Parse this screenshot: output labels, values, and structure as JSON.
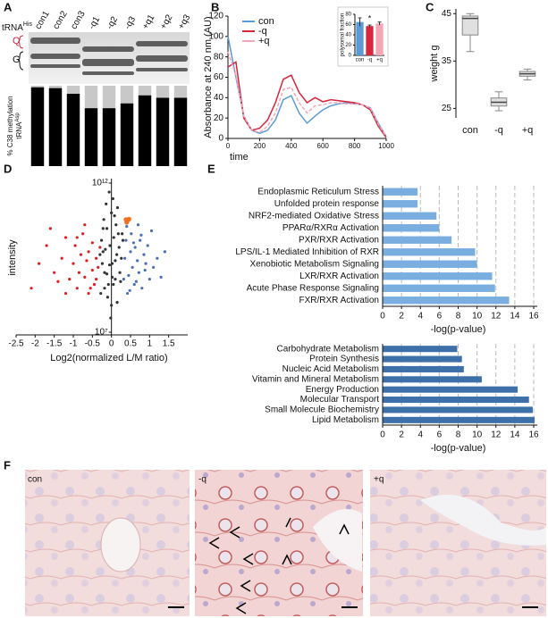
{
  "panel_labels": [
    "A",
    "B",
    "C",
    "D",
    "E",
    "F"
  ],
  "gel": {
    "title": "tRNA",
    "title_sup": "His",
    "bands": [
      "Q",
      "G"
    ]
  },
  "micrographs": {
    "labels": [
      "con",
      "-q",
      "+q"
    ]
  },
  "chart_data": [
    {
      "type": "bar",
      "categories": [
        "con1",
        "con2",
        "con3",
        "-q1",
        "-q2",
        "-q3",
        "+q1",
        "+q2",
        "+q3"
      ],
      "values": [
        98,
        97,
        90,
        72,
        72,
        78,
        88,
        85,
        85
      ],
      "ylim": [
        0,
        100
      ],
      "y_label": "% C38 methylation",
      "y_label_2": "tRNA",
      "y_label_2_sup": "Asp",
      "color": "#000000",
      "background_color": "#c8c8c8"
    },
    {
      "type": "line",
      "x_label": "time",
      "y_label": "Absorbance at 240 nm (AU)",
      "x": [
        0,
        50,
        100,
        150,
        200,
        250,
        300,
        350,
        400,
        450,
        500,
        550,
        600,
        650,
        700,
        750,
        800,
        850,
        900,
        950,
        1000
      ],
      "xlim": [
        0,
        1000
      ],
      "xticks": [
        0,
        200,
        400,
        600,
        800,
        1000
      ],
      "ylim": [
        0,
        120
      ],
      "yticks": [
        0,
        20,
        40,
        60,
        80,
        100,
        120
      ],
      "series": [
        {
          "name": "con",
          "color": "#5b9bd5",
          "values": [
            100,
            60,
            22,
            8,
            5,
            8,
            18,
            38,
            42,
            25,
            15,
            22,
            28,
            32,
            34,
            35,
            34,
            33,
            30,
            15,
            2
          ]
        },
        {
          "name": "-q",
          "color": "#d7263d",
          "values": [
            70,
            75,
            20,
            8,
            10,
            18,
            35,
            58,
            62,
            45,
            35,
            40,
            36,
            38,
            37,
            36,
            35,
            33,
            28,
            12,
            1
          ]
        },
        {
          "name": "+q",
          "color": "#f4a6b4",
          "values": [
            85,
            62,
            22,
            8,
            6,
            12,
            25,
            48,
            50,
            35,
            25,
            32,
            33,
            35,
            35,
            34,
            34,
            33,
            30,
            14,
            2
          ]
        }
      ]
    },
    {
      "type": "bar",
      "y_label": "polysomal fraction",
      "categories": [
        "con",
        "-q",
        "+q"
      ],
      "values": [
        65,
        57,
        62
      ],
      "errors": [
        8,
        2,
        3
      ],
      "colors": [
        "#5b9bd5",
        "#d7263d",
        "#f4a6b4"
      ],
      "ylim": [
        0,
        80
      ],
      "yticks": [
        0,
        20,
        40,
        60,
        80
      ],
      "annotations": [
        {
          "text": "*",
          "index": 1
        }
      ]
    },
    {
      "type": "box",
      "y_label": "weight g",
      "categories": [
        "con",
        "-q",
        "+q"
      ],
      "boxes": [
        {
          "whislo": 37,
          "q1": 40.5,
          "med": 44,
          "q3": 44.5,
          "whishi": 45
        },
        {
          "whislo": 24.5,
          "q1": 25.5,
          "med": 26.3,
          "q3": 27.2,
          "whishi": 28.5
        },
        {
          "whislo": 31,
          "q1": 31.8,
          "med": 32.3,
          "q3": 32.8,
          "whishi": 33.3
        }
      ],
      "ylim": [
        23,
        46
      ],
      "yticks": [
        25,
        35,
        45
      ],
      "color": "#e0e0e0"
    },
    {
      "type": "scatter",
      "x_label": "Log2(normalized L/M ratio)",
      "y_label": "intensity",
      "xlim": [
        -2.5,
        2.0
      ],
      "xticks": [
        -2.5,
        -2,
        -1.5,
        -1,
        -0.5,
        0,
        0.5,
        1,
        1.5
      ],
      "ylim": [
        10000000,
        1000000000000
      ],
      "log_scale_y": true,
      "yticks": [
        {
          "value": 1000000000000,
          "label": "10¹²"
        },
        {
          "value": 10000000,
          "label": "10⁷"
        }
      ],
      "series": [
        {
          "color": "#e02020",
          "x": [
            -2.1,
            -1.9,
            -1.7,
            -1.5,
            -1.4,
            -1.3,
            -1.2,
            -1.1,
            -1.0,
            -0.95,
            -0.9,
            -0.85,
            -0.8,
            -0.75,
            -0.7,
            -0.65,
            -0.6,
            -0.55,
            -0.5,
            -0.5,
            -0.45,
            -0.4,
            -0.4,
            -0.35,
            -0.3,
            -0.6,
            -1.6,
            -0.7,
            -1.2,
            -0.9
          ],
          "values": [
            300000000.0,
            2000000000.0,
            8000000000.0,
            1000000000.0,
            500000000.0,
            3000000000.0,
            15000000000.0,
            600000000.0,
            2000000000.0,
            8000000000.0,
            300000000.0,
            1000000000.0,
            4000000000.0,
            20000000000.0,
            700000000.0,
            2500000000.0,
            5000000000.0,
            300000000.0,
            1200000000.0,
            10000000000.0,
            400000000.0,
            3000000000.0,
            600000000.0,
            1500000000.0,
            7000000000.0,
            200000000.0,
            30000000000.0,
            40000000000.0,
            200000000.0,
            15000000000.0
          ]
        },
        {
          "color": "#333333",
          "x": [
            -0.28,
            -0.22,
            -0.18,
            -0.12,
            -0.08,
            -0.04,
            0.02,
            0.06,
            0.1,
            0.14,
            0.18,
            0.22,
            0.26,
            -0.26,
            -0.2,
            -0.14,
            -0.06,
            0.0,
            0.04,
            0.08,
            0.12,
            0.16,
            -0.1,
            0.0,
            -0.02,
            0.05,
            -0.16,
            0.2,
            -0.24,
            0.24,
            -0.3,
            0.3,
            -0.18,
            0.1,
            -0.05,
            0.02,
            0.15,
            -0.12,
            0.28,
            -0.22
          ],
          "values": [
            200000000.0,
            5000000000.0,
            1000000000.0,
            30000000000.0,
            400000000.0,
            8000000000.0,
            2000000000.0,
            15000000000.0,
            600000000.0,
            4000000000.0,
            20000000000.0,
            1000000000.0,
            3000000000.0,
            12000000000.0,
            60000000000.0,
            200000000000.0,
            500000000000.0,
            100000000000.0,
            300000000000.0,
            80000000000.0,
            40000000000.0,
            150000000000.0,
            150000000.0,
            80000000.0,
            30000000.0,
            400000000.0,
            6000000000.0,
            7000000000.0,
            2000000000.0,
            500000000.0,
            4000000000.0,
            12000000000.0,
            300000000.0,
            2500000000.0,
            1800000000.0,
            700000000.0,
            100000000.0,
            900000000.0,
            20000000000.0,
            30000000000.0
          ]
        },
        {
          "color": "#4a6fb5",
          "x": [
            0.32,
            0.35,
            0.38,
            0.42,
            0.45,
            0.5,
            0.52,
            0.55,
            0.6,
            0.62,
            0.68,
            0.72,
            0.75,
            0.8,
            0.85,
            0.9,
            0.95,
            1.0,
            1.05,
            1.1,
            1.2,
            1.3,
            0.4,
            0.48,
            0.58,
            0.65,
            0.78,
            0.88,
            1.4,
            0.7
          ],
          "values": [
            600000000.0,
            3000000000.0,
            12000000000.0,
            200000000.0,
            800000000.0,
            5000000000.0,
            20000000000.0,
            1500000000.0,
            400000000.0,
            7000000000.0,
            2500000000.0,
            1000000000.0,
            12000000000.0,
            300000000.0,
            4000000000.0,
            2000000000.0,
            8000000000.0,
            600000000.0,
            25000000000.0,
            1500000000.0,
            3000000000.0,
            700000000.0,
            35000000000.0,
            250000000.0,
            10000000000.0,
            500000000.0,
            18000000000.0,
            1200000000.0,
            5000000000.0,
            40000000000.0
          ]
        },
        {
          "color": "#f07020",
          "x": [
            0.38,
            0.42,
            0.46,
            0.4
          ],
          "values": [
            60000000000.0,
            55000000000.0,
            62000000000.0,
            48000000000.0
          ]
        }
      ]
    },
    {
      "type": "hbar",
      "x_label": "-log(p-value)",
      "categories": [
        "Endoplasmic Reticulum Stress",
        "Unfolded protein response",
        "NRF2-mediated Oxidative Stress",
        "PPARα/RXRα Activation",
        "PXR/RXR Activation",
        "LPS/IL-1 Mediated Inhibition of RXR",
        "Xenobiotic Metabolism Signaling",
        "LXR/RXR Activation",
        "Acute Phase Response Signaling",
        "FXR/RXR Activation"
      ],
      "values": [
        3.7,
        3.7,
        5.7,
        6.0,
        7.3,
        9.8,
        10.0,
        11.6,
        11.9,
        13.4
      ],
      "xlim": [
        0,
        16
      ],
      "xticks": [
        0,
        2,
        4,
        6,
        8,
        10,
        12,
        14,
        16
      ],
      "grid": true,
      "color": "#7aaee0"
    },
    {
      "type": "hbar",
      "x_label": "-log(p-value)",
      "categories": [
        "Carbohydrate Metabolism",
        "Protein Synthesis",
        "Nucleic Acid Metabolism",
        "Vitamin and Mineral Metabolism",
        "Energy Production",
        "Molecular Transport",
        "Small Molecule Biochemistry",
        "Lipid Metabolism"
      ],
      "values": [
        7.9,
        8.4,
        8.6,
        10.5,
        14.3,
        15.5,
        15.9,
        16.1
      ],
      "xlim": [
        0,
        16
      ],
      "xticks": [
        0,
        2,
        4,
        6,
        8,
        10,
        12,
        14,
        16
      ],
      "grid": true,
      "color": "#3d6fa8"
    }
  ]
}
